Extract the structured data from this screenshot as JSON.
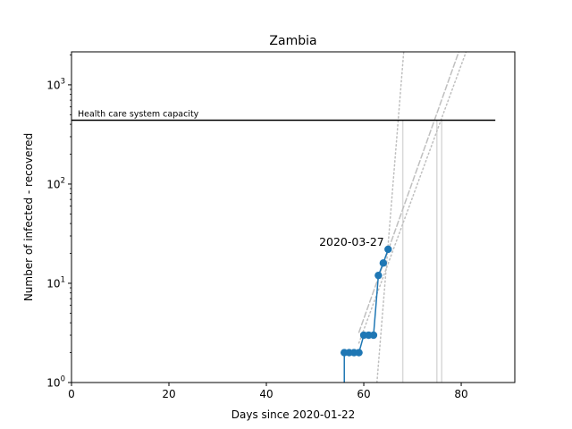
{
  "chart_data": {
    "type": "line",
    "title": "Zambia",
    "xlabel": "Days since 2020-01-22",
    "ylabel": "Number of infected - recovered",
    "xlim": [
      0,
      91
    ],
    "ylim": [
      1,
      2150
    ],
    "yscale": "log",
    "grid": false,
    "x_ticks": [
      {
        "value": 0,
        "label": "0"
      },
      {
        "value": 20,
        "label": "20"
      },
      {
        "value": 40,
        "label": "40"
      },
      {
        "value": 60,
        "label": "60"
      },
      {
        "value": 80,
        "label": "80"
      }
    ],
    "y_ticks": [
      {
        "value": 1,
        "base": "10",
        "exp": "0"
      },
      {
        "value": 10,
        "base": "10",
        "exp": "1"
      },
      {
        "value": 100,
        "base": "10",
        "exp": "2"
      },
      {
        "value": 1000,
        "base": "10",
        "exp": "3"
      }
    ],
    "series": [
      {
        "color": "#1f77b4",
        "x": [
          56,
          57,
          58,
          59,
          60,
          61,
          62,
          63,
          64,
          65
        ],
        "y": [
          2,
          2,
          2,
          2,
          3,
          3,
          3,
          12,
          16,
          22
        ]
      }
    ],
    "capacity": {
      "label": "Health care system capacity",
      "value": 440,
      "x_range": [
        0,
        87
      ],
      "color": "#000000"
    },
    "fits": [
      {
        "style": "dotted",
        "color": "#bfbfbf",
        "x": [
          62.7,
          68.2
        ],
        "y": [
          1,
          2150
        ]
      },
      {
        "style": "dashed",
        "color": "#bfbfbf",
        "x": [
          59,
          79.5
        ],
        "y": [
          3.2,
          2150
        ]
      },
      {
        "style": "dotted",
        "color": "#bfbfbf",
        "x": [
          59,
          81
        ],
        "y": [
          2.5,
          2150
        ]
      }
    ],
    "vlines": [
      {
        "x": 68,
        "color": "#d9d9d9"
      },
      {
        "x": 75,
        "color": "#d9d9d9"
      },
      {
        "x": 76,
        "color": "#d9d9d9"
      }
    ],
    "vlines_top": 440,
    "annotation": {
      "text": "2020-03-27",
      "x": 57.5,
      "y": 24
    }
  }
}
